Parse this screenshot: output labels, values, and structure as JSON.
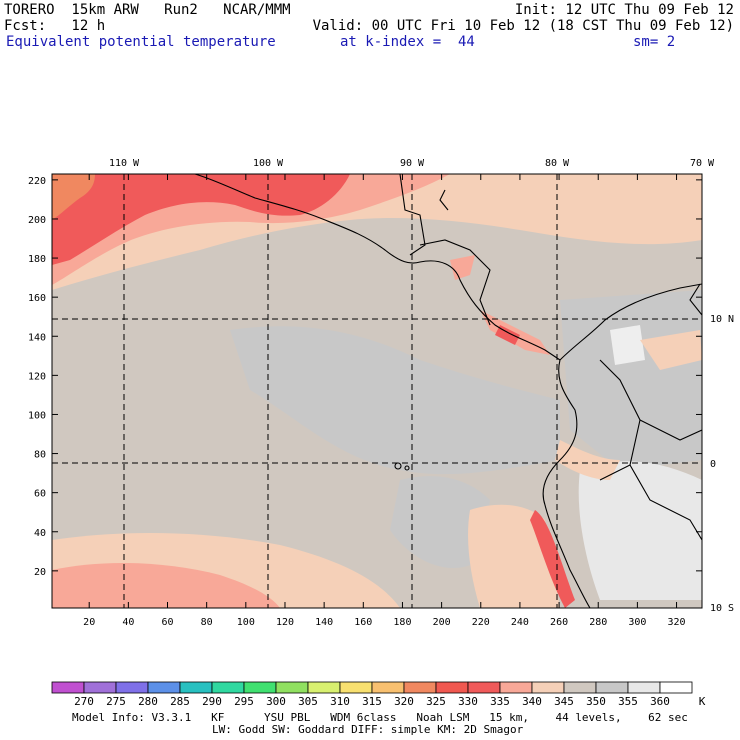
{
  "header": {
    "line1_left": "TORERO  15km ARW   Run2   NCAR/MMM",
    "line1_right": "Init: 12 UTC Thu 09 Feb 12",
    "line2_left": "Fcst:   12 h",
    "line2_right": "Valid: 00 UTC Fri 10 Feb 12 (18 CST Thu 09 Feb 12)",
    "line3_field": "Equivalent potential temperature",
    "line3_level": "at k-index =  44",
    "line3_sm": "sm= 2"
  },
  "map": {
    "lon_labels": [
      "110 W",
      "100 W",
      "90 W",
      "80 W",
      "70 W"
    ],
    "lat_labels": [
      "10 N",
      "0",
      "10 S"
    ],
    "y_ticks": [
      "20",
      "40",
      "60",
      "80",
      "100",
      "120",
      "140",
      "160",
      "180",
      "200",
      "220"
    ],
    "x_ticks": [
      "20",
      "40",
      "60",
      "80",
      "100",
      "120",
      "140",
      "160",
      "180",
      "200",
      "220",
      "240",
      "260",
      "280",
      "300",
      "320"
    ]
  },
  "colorbar": {
    "labels": [
      "270",
      "275",
      "280",
      "285",
      "290",
      "295",
      "300",
      "305",
      "310",
      "315",
      "320",
      "325",
      "330",
      "335",
      "340",
      "345",
      "350",
      "355",
      "360"
    ],
    "unit": "K",
    "colors": [
      "#c050d0",
      "#a070d8",
      "#7f70e8",
      "#5c90e8",
      "#28c0c0",
      "#30d8a0",
      "#40e070",
      "#90e060",
      "#d8f070",
      "#f8e070",
      "#f8c070",
      "#f08860",
      "#f05850",
      "#f05a5a",
      "#f8a898",
      "#f5d0b8",
      "#d0c8c0",
      "#c8c8c8",
      "#e8e8e8",
      "#ffffff"
    ]
  },
  "footer": {
    "line1": "Model Info: V3.3.1   KF      YSU PBL   WDM 6class   Noah LSM   15 km,    44 levels,    62 sec",
    "line2": "LW: Godd SW: Goddard DIFF: simple KM: 2D Smagor"
  }
}
